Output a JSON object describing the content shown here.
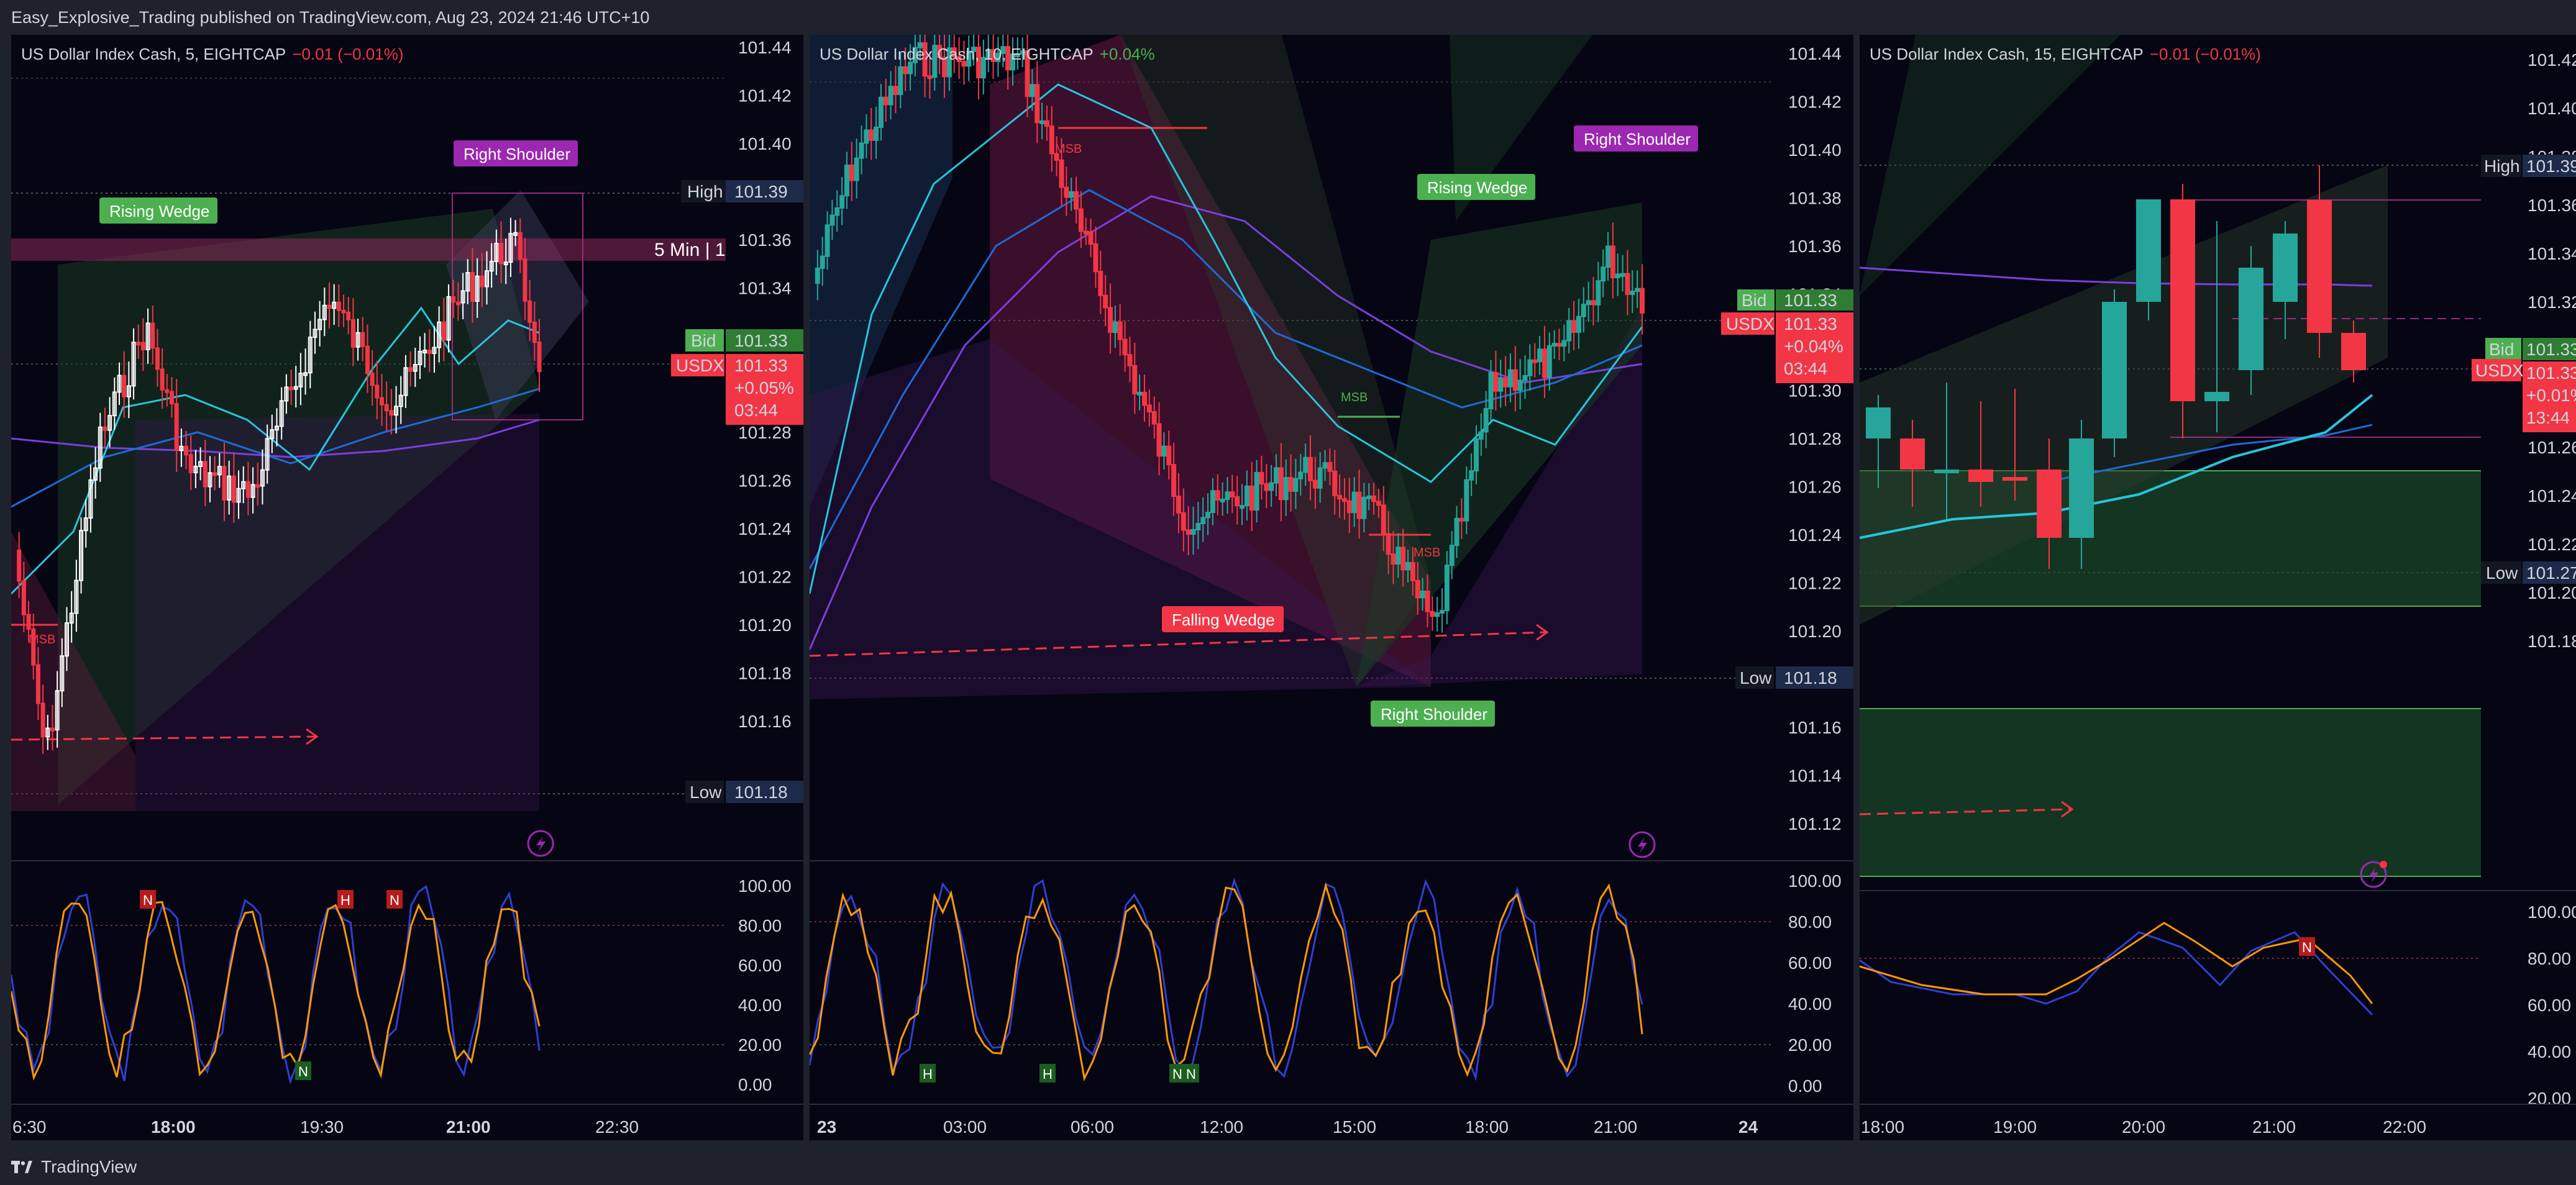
{
  "header": {
    "publisher_line": "Easy_Explosive_Trading published on TradingView.com, Aug 23, 2024 21:46 UTC+10"
  },
  "footer": {
    "brand": "TradingView",
    "logo_icon": "tradingview-logo-icon"
  },
  "colors": {
    "bg": "#050513",
    "up": "#26a69a",
    "down": "#f23645",
    "green_label": "#4caf50",
    "purple_label": "#9c27b0",
    "osc_k": "#ff9800",
    "osc_d": "#2f3fd6",
    "ema_fast": "#26c6da",
    "ema_mid": "#1e6bd6",
    "ema_slow": "#7b3fe0"
  },
  "panes": [
    {
      "legend": {
        "symbol": "US Dollar Index Cash, 5, EIGHTCAP",
        "change": "−0.01 (−0.01%)"
      },
      "price_ticks": [
        "101.44",
        "101.42",
        "101.40",
        "101.38",
        "101.36",
        "101.34",
        "101.32",
        "101.30",
        "101.28",
        "101.26",
        "101.24",
        "101.22",
        "101.20",
        "101.18",
        "101.16"
      ],
      "osc_ticks": [
        "100.00",
        "80.00",
        "60.00",
        "40.00",
        "20.00",
        "0.00"
      ],
      "time_ticks": [
        {
          "t": "6:30",
          "b": false
        },
        {
          "t": "18:00",
          "b": true
        },
        {
          "t": "19:30",
          "b": false
        },
        {
          "t": "21:00",
          "b": true
        },
        {
          "t": "22:30",
          "b": false
        }
      ],
      "high": {
        "label": "High",
        "value": "101.39"
      },
      "low": {
        "label": "Low",
        "value": "101.18"
      },
      "bid": {
        "label": "Bid",
        "value": "101.33"
      },
      "sym": {
        "label": "USDX",
        "value": "101.33",
        "change": "+0.05%",
        "countdown": "03:44"
      },
      "zone_label": "5 Min | 1",
      "patterns": [
        {
          "text": "Rising Wedge",
          "color": "green"
        },
        {
          "text": "Right Shoulder",
          "color": "purple"
        }
      ],
      "msb": [
        "MSB"
      ],
      "osc_markers": [
        "N",
        "H",
        "N",
        "N"
      ],
      "alert_icon": "lightning-alert-icon"
    },
    {
      "legend": {
        "symbol": "US Dollar Index Cash, 10, EIGHTCAP",
        "change": "+0.04%"
      },
      "price_ticks": [
        "101.44",
        "101.42",
        "101.40",
        "101.38",
        "101.36",
        "101.34",
        "101.32",
        "101.30",
        "101.28",
        "101.26",
        "101.24",
        "101.22",
        "101.20",
        "101.18",
        "101.16",
        "101.14",
        "101.12"
      ],
      "osc_ticks": [
        "100.00",
        "80.00",
        "60.00",
        "40.00",
        "20.00",
        "0.00"
      ],
      "time_ticks": [
        {
          "t": "23",
          "b": true
        },
        {
          "t": "03:00",
          "b": false
        },
        {
          "t": "06:00",
          "b": false
        },
        {
          "t": "12:00",
          "b": false
        },
        {
          "t": "15:00",
          "b": false
        },
        {
          "t": "18:00",
          "b": false
        },
        {
          "t": "21:00",
          "b": false
        },
        {
          "t": "24",
          "b": true
        }
      ],
      "low": {
        "label": "Low",
        "value": "101.18"
      },
      "bid": {
        "label": "Bid",
        "value": "101.33"
      },
      "sym": {
        "label": "USDX",
        "value": "101.33",
        "change": "+0.04%",
        "countdown": "03:44"
      },
      "patterns": [
        {
          "text": "Rising Wedge",
          "color": "green"
        },
        {
          "text": "Right Shoulder",
          "color": "purple"
        },
        {
          "text": "Falling Wedge",
          "color": "red"
        },
        {
          "text": "Right Shoulder",
          "color": "green"
        }
      ],
      "msb": [
        "MSB",
        "MSB",
        "MSB"
      ],
      "osc_markers": [
        "H",
        "H",
        "N",
        "N"
      ],
      "alert_icon": "lightning-alert-icon"
    },
    {
      "legend": {
        "symbol": "US Dollar Index Cash, 15, EIGHTCAP",
        "change": "−0.01 (−0.01%)"
      },
      "price_ticks": [
        "101.42",
        "101.40",
        "101.38",
        "101.36",
        "101.34",
        "101.32",
        "101.30",
        "101.28",
        "101.26",
        "101.24",
        "101.22",
        "101.20",
        "101.18"
      ],
      "osc_ticks": [
        "100.00",
        "80.00",
        "60.00",
        "40.00",
        "20.00"
      ],
      "time_ticks": [
        {
          "t": "18:00",
          "b": false
        },
        {
          "t": "19:00",
          "b": false
        },
        {
          "t": "20:00",
          "b": false
        },
        {
          "t": "21:00",
          "b": false
        },
        {
          "t": "22:00",
          "b": false
        }
      ],
      "high": {
        "label": "High",
        "value": "101.39"
      },
      "low": {
        "label": "Low",
        "value": "101.27"
      },
      "bid": {
        "label": "Bid",
        "value": "101.33"
      },
      "sym": {
        "label": "USDX",
        "value": "101.33",
        "change": "+0.01%",
        "countdown": "13:44"
      },
      "osc_markers": [
        "N"
      ],
      "alert_icon": "lightning-alert-icon"
    }
  ]
}
